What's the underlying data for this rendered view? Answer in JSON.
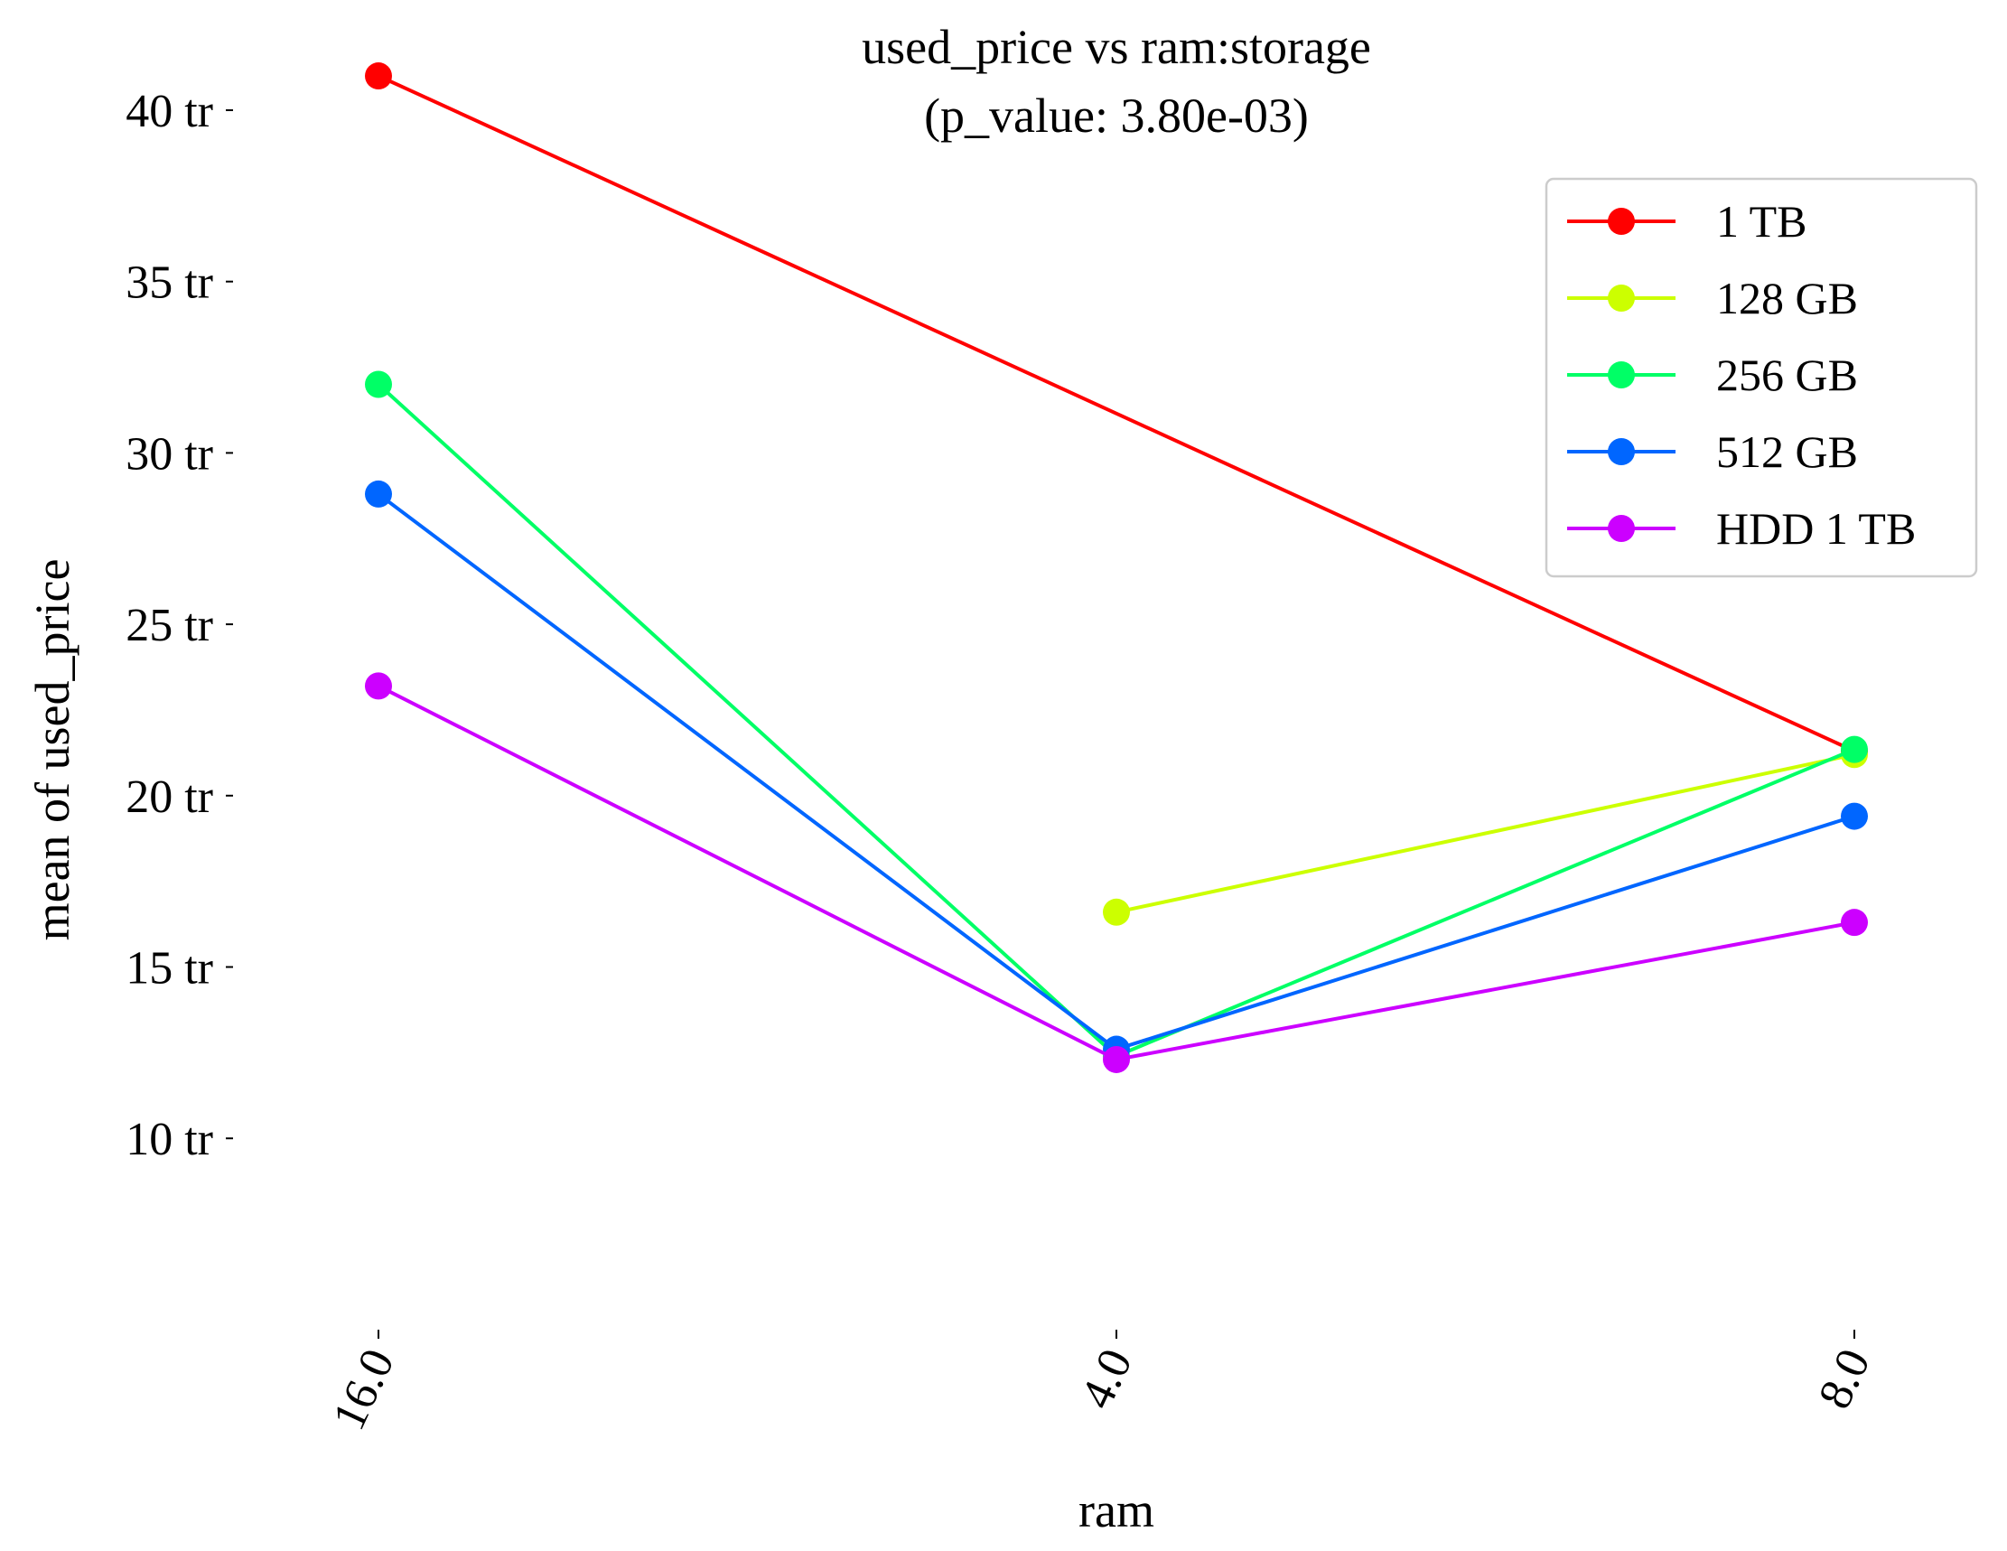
{
  "chart_data": {
    "type": "line",
    "title": "used_price vs ram:storage",
    "subtitle": "(p_value: 3.80e-03)",
    "xlabel": "ram",
    "ylabel": "mean of used_price",
    "categories": [
      "16.0",
      "4.0",
      "8.0"
    ],
    "ylim": [
      9.5,
      42.0
    ],
    "yticks": [
      {
        "value": 10,
        "label": "10 tr"
      },
      {
        "value": 15,
        "label": "15 tr"
      },
      {
        "value": 20,
        "label": "20 tr"
      },
      {
        "value": 25,
        "label": "25 tr"
      },
      {
        "value": 30,
        "label": "30 tr"
      },
      {
        "value": 35,
        "label": "35 tr"
      },
      {
        "value": 40,
        "label": "40 tr"
      }
    ],
    "grid": false,
    "legend_position": "top-right",
    "series": [
      {
        "name": "1 TB",
        "color": "#ff0000",
        "values": [
          41.0,
          null,
          21.3
        ]
      },
      {
        "name": "128 GB",
        "color": "#ccff00",
        "values": [
          null,
          16.6,
          21.2
        ]
      },
      {
        "name": "256 GB",
        "color": "#00ff66",
        "values": [
          32.0,
          12.4,
          21.35
        ]
      },
      {
        "name": "512 GB",
        "color": "#0066ff",
        "values": [
          28.8,
          12.6,
          19.4
        ]
      },
      {
        "name": "HDD 1 TB",
        "color": "#cc00ff",
        "values": [
          23.2,
          12.3,
          16.3
        ]
      }
    ]
  }
}
